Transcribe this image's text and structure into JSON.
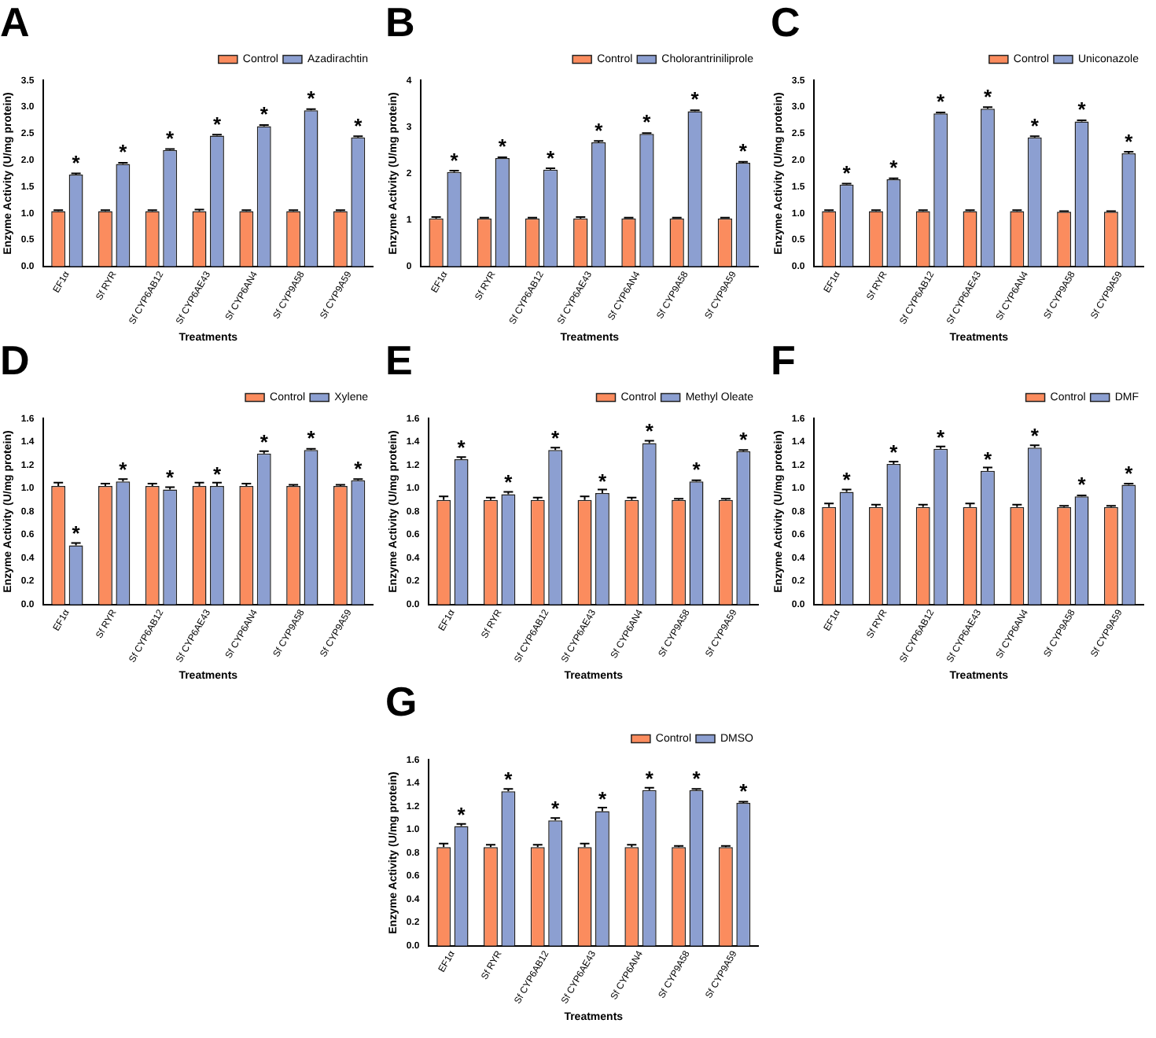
{
  "chart_data": [
    {
      "type": "bar",
      "title": "A",
      "xlabel": "Treatments",
      "ylabel": "Enzyme Activity (U/mg protein)",
      "categories": [
        "EF1α",
        "Sf RYR",
        "Sf CYP6AB12",
        "Sf CYP6AE43",
        "Sf CYP6AN4",
        "Sf CYP9A58",
        "Sf CYP9A59"
      ],
      "series": [
        {
          "name": "Control",
          "color": "#fb8c5e",
          "values": [
            1.04,
            1.04,
            1.04,
            1.04,
            1.04,
            1.04,
            1.04
          ],
          "errors": [
            0.02,
            0.02,
            0.02,
            0.03,
            0.02,
            0.02,
            0.02
          ]
        },
        {
          "name": "Azadirachtin",
          "color": "#8c9fd1",
          "values": [
            1.73,
            1.93,
            2.19,
            2.46,
            2.64,
            2.94,
            2.43
          ],
          "errors": [
            0.02,
            0.02,
            0.02,
            0.02,
            0.02,
            0.02,
            0.02
          ]
        }
      ],
      "ylim": [
        0,
        3.5
      ],
      "yticks": [
        {
          "value": 0,
          "label": "0.0"
        },
        {
          "value": 0.5,
          "label": "0.5"
        },
        {
          "value": 1,
          "label": "1.0"
        },
        {
          "value": 1.5,
          "label": "1.5"
        },
        {
          "value": 2,
          "label": "2.0"
        },
        {
          "value": 2.5,
          "label": "2.5"
        },
        {
          "value": 3,
          "label": "3.0"
        },
        {
          "value": 3.5,
          "label": "3.5"
        }
      ],
      "grid": false,
      "legend": "top right",
      "annotations": [
        {
          "text": "*",
          "x": "EF1α",
          "y": 1.73
        },
        {
          "text": "*",
          "x": "Sf RYR",
          "y": 1.93
        },
        {
          "text": "*",
          "x": "Sf CYP6AB12",
          "y": 2.19
        },
        {
          "text": "*",
          "x": "Sf CYP6AE43",
          "y": 2.46
        },
        {
          "text": "*",
          "x": "Sf CYP6AN4",
          "y": 2.64
        },
        {
          "text": "*",
          "x": "Sf CYP9A58",
          "y": 2.94
        },
        {
          "text": "*",
          "x": "Sf CYP9A59",
          "y": 2.43
        }
      ]
    },
    {
      "type": "bar",
      "title": "B",
      "xlabel": "Treatments",
      "ylabel": "Enzyme Activity (U/mg protein)",
      "categories": [
        "EF1α",
        "Sf RYR",
        "Sf CYP6AB12",
        "Sf CYP6AE43",
        "Sf CYP6AN4",
        "Sf CYP9A58",
        "Sf CYP9A59"
      ],
      "series": [
        {
          "name": "Control",
          "color": "#fb8c5e",
          "values": [
            1.03,
            1.03,
            1.03,
            1.03,
            1.03,
            1.03,
            1.03
          ],
          "errors": [
            0.03,
            0.02,
            0.02,
            0.03,
            0.02,
            0.02,
            0.02
          ]
        },
        {
          "name": "Cholorantriniliprole",
          "color": "#8c9fd1",
          "values": [
            2.03,
            2.33,
            2.08,
            2.67,
            2.85,
            3.34,
            2.23
          ],
          "errors": [
            0.03,
            0.02,
            0.03,
            0.03,
            0.02,
            0.02,
            0.02
          ]
        }
      ],
      "ylim": [
        0,
        4
      ],
      "yticks": [
        0,
        1,
        2,
        3,
        4
      ],
      "grid": false,
      "legend": "top right",
      "annotations": [
        {
          "text": "*",
          "x": "EF1α",
          "y": 2.03
        },
        {
          "text": "*",
          "x": "Sf RYR",
          "y": 2.33
        },
        {
          "text": "*",
          "x": "Sf CYP6AB12",
          "y": 2.08
        },
        {
          "text": "*",
          "x": "Sf CYP6AE43",
          "y": 2.67
        },
        {
          "text": "*",
          "x": "Sf CYP6AN4",
          "y": 2.85
        },
        {
          "text": "*",
          "x": "Sf CYP9A58",
          "y": 3.34
        },
        {
          "text": "*",
          "x": "Sf CYP9A59",
          "y": 2.23
        }
      ]
    },
    {
      "type": "bar",
      "title": "C",
      "xlabel": "Treatments",
      "ylabel": "Enzyme Activity (U/mg protein)",
      "categories": [
        "EF1α",
        "Sf RYR",
        "Sf CYP6AB12",
        "Sf CYP6AE43",
        "Sf CYP6AN4",
        "Sf CYP9A58",
        "Sf CYP9A59"
      ],
      "series": [
        {
          "name": "Control",
          "color": "#fb8c5e",
          "values": [
            1.04,
            1.04,
            1.04,
            1.04,
            1.04,
            1.03,
            1.03
          ],
          "errors": [
            0.02,
            0.02,
            0.02,
            0.02,
            0.02,
            0.01,
            0.01
          ]
        },
        {
          "name": "Uniconazole",
          "color": "#8c9fd1",
          "values": [
            1.54,
            1.64,
            2.88,
            2.97,
            2.43,
            2.73,
            2.13
          ],
          "errors": [
            0.02,
            0.02,
            0.02,
            0.03,
            0.02,
            0.02,
            0.03
          ]
        }
      ],
      "ylim": [
        0,
        3.5
      ],
      "yticks": [
        {
          "value": 0,
          "label": "0.0"
        },
        {
          "value": 0.5,
          "label": "0.5"
        },
        {
          "value": 1,
          "label": "1.0"
        },
        {
          "value": 1.5,
          "label": "1.5"
        },
        {
          "value": 2,
          "label": "2.0"
        },
        {
          "value": 2.5,
          "label": "2.5"
        },
        {
          "value": 3,
          "label": "3.0"
        },
        {
          "value": 3.5,
          "label": "3.5"
        }
      ],
      "grid": false,
      "legend": "top right",
      "annotations": [
        {
          "text": "*",
          "x": "EF1α",
          "y": 1.54
        },
        {
          "text": "*",
          "x": "Sf RYR",
          "y": 1.64
        },
        {
          "text": "*",
          "x": "Sf CYP6AB12",
          "y": 2.88
        },
        {
          "text": "*",
          "x": "Sf CYP6AE43",
          "y": 2.97
        },
        {
          "text": "*",
          "x": "Sf CYP6AN4",
          "y": 2.43
        },
        {
          "text": "*",
          "x": "Sf CYP9A58",
          "y": 2.73
        },
        {
          "text": "*",
          "x": "Sf CYP9A59",
          "y": 2.13
        }
      ]
    },
    {
      "type": "bar",
      "title": "D",
      "xlabel": "Treatments",
      "ylabel": "Enzyme Activity (U/mg protein)",
      "categories": [
        "EF1α",
        "Sf RYR",
        "Sf CYP6AB12",
        "Sf CYP6AE43",
        "Sf CYP6AN4",
        "Sf CYP9A58",
        "Sf CYP9A59"
      ],
      "series": [
        {
          "name": "Control",
          "color": "#fb8c5e",
          "values": [
            1.02,
            1.02,
            1.02,
            1.02,
            1.02,
            1.02,
            1.02
          ],
          "errors": [
            0.03,
            0.02,
            0.02,
            0.03,
            0.02,
            0.01,
            0.01
          ]
        },
        {
          "name": "Xylene",
          "color": "#8c9fd1",
          "values": [
            0.51,
            1.06,
            0.99,
            1.02,
            1.3,
            1.33,
            1.07
          ],
          "errors": [
            0.02,
            0.02,
            0.02,
            0.03,
            0.02,
            0.01,
            0.01
          ]
        }
      ],
      "ylim": [
        0,
        1.6
      ],
      "yticks": [
        {
          "value": 0,
          "label": "0.0"
        },
        {
          "value": 0.2,
          "label": "0.2"
        },
        {
          "value": 0.4,
          "label": "0.4"
        },
        {
          "value": 0.6,
          "label": "0.6"
        },
        {
          "value": 0.8,
          "label": "0.8"
        },
        {
          "value": 1,
          "label": "1.0"
        },
        {
          "value": 1.2,
          "label": "1.2"
        },
        {
          "value": 1.4,
          "label": "1.4"
        },
        {
          "value": 1.6,
          "label": "1.6"
        }
      ],
      "grid": false,
      "legend": "top right",
      "annotations": [
        {
          "text": "*",
          "x": "EF1α",
          "y": 0.51
        },
        {
          "text": "*",
          "x": "Sf RYR",
          "y": 1.06
        },
        {
          "text": "*",
          "x": "Sf CYP6AB12",
          "y": 0.99
        },
        {
          "text": "*",
          "x": "Sf CYP6AE43",
          "y": 1.02
        },
        {
          "text": "*",
          "x": "Sf CYP6AN4",
          "y": 1.3
        },
        {
          "text": "*",
          "x": "Sf CYP9A58",
          "y": 1.33
        },
        {
          "text": "*",
          "x": "Sf CYP9A59",
          "y": 1.07
        }
      ]
    },
    {
      "type": "bar",
      "title": "E",
      "xlabel": "Treatments",
      "ylabel": "Enzyme Activity (U/mg protein)",
      "categories": [
        "EF1α",
        "Sf RYR",
        "Sf CYP6AB12",
        "Sf CYP6AE43",
        "Sf CYP6AN4",
        "Sf CYP9A58",
        "Sf CYP9A59"
      ],
      "series": [
        {
          "name": "Control",
          "color": "#fb8c5e",
          "values": [
            0.9,
            0.9,
            0.9,
            0.9,
            0.9,
            0.9,
            0.9
          ],
          "errors": [
            0.03,
            0.02,
            0.02,
            0.03,
            0.02,
            0.01,
            0.01
          ]
        },
        {
          "name": "Methyl Oleate",
          "color": "#8c9fd1",
          "values": [
            1.25,
            0.95,
            1.33,
            0.96,
            1.39,
            1.06,
            1.32
          ],
          "errors": [
            0.02,
            0.02,
            0.02,
            0.03,
            0.02,
            0.01,
            0.01
          ]
        }
      ],
      "ylim": [
        0,
        1.6
      ],
      "yticks": [
        {
          "value": 0,
          "label": "0.0"
        },
        {
          "value": 0.2,
          "label": "0.2"
        },
        {
          "value": 0.4,
          "label": "0.4"
        },
        {
          "value": 0.6,
          "label": "0.6"
        },
        {
          "value": 0.8,
          "label": "0.8"
        },
        {
          "value": 1,
          "label": "1.0"
        },
        {
          "value": 1.2,
          "label": "1.2"
        },
        {
          "value": 1.4,
          "label": "1.4"
        },
        {
          "value": 1.6,
          "label": "1.6"
        }
      ],
      "grid": false,
      "legend": "top right",
      "annotations": [
        {
          "text": "*",
          "x": "EF1α",
          "y": 1.25
        },
        {
          "text": "*",
          "x": "Sf RYR",
          "y": 0.95
        },
        {
          "text": "*",
          "x": "Sf CYP6AB12",
          "y": 1.33
        },
        {
          "text": "*",
          "x": "Sf CYP6AE43",
          "y": 0.96
        },
        {
          "text": "*",
          "x": "Sf CYP6AN4",
          "y": 1.39
        },
        {
          "text": "*",
          "x": "Sf CYP9A58",
          "y": 1.06
        },
        {
          "text": "*",
          "x": "Sf CYP9A59",
          "y": 1.32
        }
      ]
    },
    {
      "type": "bar",
      "title": "F",
      "xlabel": "Treatments",
      "ylabel": "Enzyme Activity (U/mg protein)",
      "categories": [
        "EF1α",
        "Sf RYR",
        "Sf CYP6AB12",
        "Sf CYP6AE43",
        "Sf CYP6AN4",
        "Sf CYP9A58",
        "Sf CYP9A59"
      ],
      "series": [
        {
          "name": "Control",
          "color": "#fb8c5e",
          "values": [
            0.84,
            0.84,
            0.84,
            0.84,
            0.84,
            0.84,
            0.84
          ],
          "errors": [
            0.03,
            0.02,
            0.02,
            0.03,
            0.02,
            0.01,
            0.01
          ]
        },
        {
          "name": "DMF",
          "color": "#8c9fd1",
          "values": [
            0.97,
            1.21,
            1.34,
            1.15,
            1.35,
            0.93,
            1.03
          ],
          "errors": [
            0.02,
            0.02,
            0.02,
            0.03,
            0.02,
            0.01,
            0.01
          ]
        }
      ],
      "ylim": [
        0,
        1.6
      ],
      "yticks": [
        {
          "value": 0,
          "label": "0.0"
        },
        {
          "value": 0.2,
          "label": "0.2"
        },
        {
          "value": 0.4,
          "label": "0.4"
        },
        {
          "value": 0.6,
          "label": "0.6"
        },
        {
          "value": 0.8,
          "label": "0.8"
        },
        {
          "value": 1,
          "label": "1.0"
        },
        {
          "value": 1.2,
          "label": "1.2"
        },
        {
          "value": 1.4,
          "label": "1.4"
        },
        {
          "value": 1.6,
          "label": "1.6"
        }
      ],
      "grid": false,
      "legend": "top right",
      "annotations": [
        {
          "text": "*",
          "x": "EF1α",
          "y": 0.97
        },
        {
          "text": "*",
          "x": "Sf RYR",
          "y": 1.21
        },
        {
          "text": "*",
          "x": "Sf CYP6AB12",
          "y": 1.34
        },
        {
          "text": "*",
          "x": "Sf CYP6AE43",
          "y": 1.15
        },
        {
          "text": "*",
          "x": "Sf CYP6AN4",
          "y": 1.35
        },
        {
          "text": "*",
          "x": "Sf CYP9A58",
          "y": 0.93
        },
        {
          "text": "*",
          "x": "Sf CYP9A59",
          "y": 1.03
        }
      ]
    },
    {
      "type": "bar",
      "title": "G",
      "xlabel": "Treatments",
      "ylabel": "Enzyme Activity (U/mg protein)",
      "categories": [
        "EF1α",
        "Sf RYR",
        "Sf CYP6AB12",
        "Sf CYP6AE43",
        "Sf CYP6AN4",
        "Sf CYP9A58",
        "Sf CYP9A59"
      ],
      "series": [
        {
          "name": "Control",
          "color": "#fb8c5e",
          "values": [
            0.85,
            0.85,
            0.85,
            0.85,
            0.85,
            0.85,
            0.85
          ],
          "errors": [
            0.03,
            0.02,
            0.02,
            0.03,
            0.02,
            0.01,
            0.01
          ]
        },
        {
          "name": "DMSO",
          "color": "#8c9fd1",
          "values": [
            1.03,
            1.33,
            1.08,
            1.16,
            1.34,
            1.34,
            1.23
          ],
          "errors": [
            0.02,
            0.02,
            0.02,
            0.03,
            0.02,
            0.01,
            0.01
          ]
        }
      ],
      "ylim": [
        0,
        1.6
      ],
      "yticks": [
        {
          "value": 0,
          "label": "0.0"
        },
        {
          "value": 0.2,
          "label": "0.2"
        },
        {
          "value": 0.4,
          "label": "0.4"
        },
        {
          "value": 0.6,
          "label": "0.6"
        },
        {
          "value": 0.8,
          "label": "0.8"
        },
        {
          "value": 1,
          "label": "1.0"
        },
        {
          "value": 1.2,
          "label": "1.2"
        },
        {
          "value": 1.4,
          "label": "1.4"
        },
        {
          "value": 1.6,
          "label": "1.6"
        }
      ],
      "grid": false,
      "legend": "top right",
      "annotations": [
        {
          "text": "*",
          "x": "EF1α",
          "y": 1.03
        },
        {
          "text": "*",
          "x": "Sf RYR",
          "y": 1.33
        },
        {
          "text": "*",
          "x": "Sf CYP6AB12",
          "y": 1.08
        },
        {
          "text": "*",
          "x": "Sf CYP6AE43",
          "y": 1.16
        },
        {
          "text": "*",
          "x": "Sf CYP6AN4",
          "y": 1.34
        },
        {
          "text": "*",
          "x": "Sf CYP9A58",
          "y": 1.34
        },
        {
          "text": "*",
          "x": "Sf CYP9A59",
          "y": 1.23
        }
      ]
    }
  ]
}
